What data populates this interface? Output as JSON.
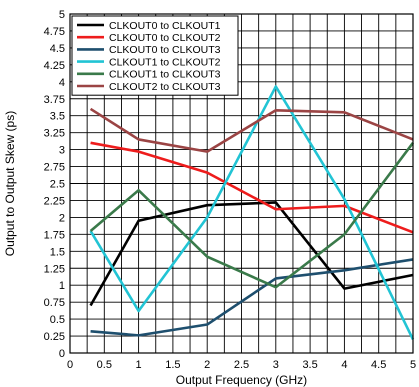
{
  "chart_data": {
    "type": "line",
    "xlabel": "Output Frequency (GHz)",
    "ylabel": "Output to Output Skew (ps)",
    "xlim": [
      0,
      5
    ],
    "ylim": [
      0,
      5
    ],
    "x_ticks": [
      0,
      0.5,
      1,
      1.5,
      2,
      2.5,
      3,
      3.5,
      4,
      4.5,
      5
    ],
    "x_tick_labels": [
      "0",
      "0.5",
      "1",
      "1.5",
      "2",
      "2.5",
      "3",
      "3.5",
      "4",
      "4.5",
      "5"
    ],
    "y_ticks": [
      0,
      0.25,
      0.5,
      0.75,
      1,
      1.25,
      1.5,
      1.75,
      2,
      2.25,
      2.5,
      2.75,
      3,
      3.25,
      3.5,
      3.75,
      4,
      4.25,
      4.5,
      4.75,
      5
    ],
    "y_tick_labels": [
      "0",
      "0.25",
      "0.5",
      "0.75",
      "1",
      "1.25",
      "1.5",
      "1.75",
      "2",
      "2.25",
      "2.5",
      "2.75",
      "3",
      "3.25",
      "3.5",
      "3.75",
      "4",
      "4.25",
      "4.5",
      "4.75",
      "5"
    ],
    "grid": true,
    "legend_position": "top-left",
    "x": [
      0.3,
      1,
      2,
      3,
      4,
      5
    ],
    "series": [
      {
        "name": "CLKOUT0 to CLKOUT1",
        "color": "#000000",
        "values": [
          0.7,
          1.95,
          2.18,
          2.22,
          0.95,
          1.15
        ]
      },
      {
        "name": "CLKOUT0 to CLKOUT2",
        "color": "#ee1c1c",
        "values": [
          3.1,
          2.97,
          2.66,
          2.12,
          2.17,
          1.78
        ]
      },
      {
        "name": "CLKOUT0 to CLKOUT3",
        "color": "#1e4f6e",
        "values": [
          0.32,
          0.26,
          0.42,
          1.1,
          1.22,
          1.38
        ]
      },
      {
        "name": "CLKOUT1 to CLKOUT2",
        "color": "#22c4d4",
        "values": [
          1.8,
          0.62,
          2.0,
          3.93,
          2.27,
          0.2
        ]
      },
      {
        "name": "CLKOUT1 to CLKOUT3",
        "color": "#3a7a4a",
        "values": [
          1.8,
          2.4,
          1.42,
          0.97,
          1.75,
          3.1
        ]
      },
      {
        "name": "CLKOUT2 to CLKOUT3",
        "color": "#9b4444",
        "values": [
          3.6,
          3.15,
          2.97,
          3.58,
          3.55,
          3.15
        ]
      }
    ]
  }
}
